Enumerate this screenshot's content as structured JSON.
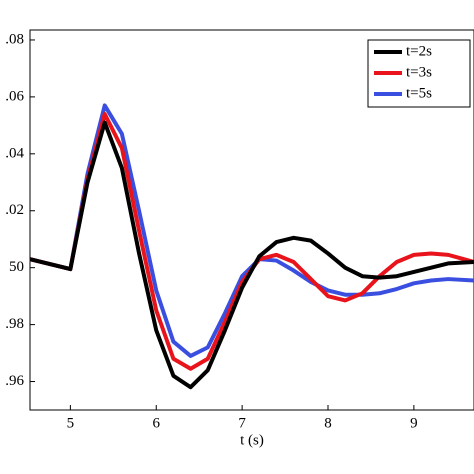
{
  "chart_data": {
    "type": "line",
    "x_label": "t (s)",
    "x": [
      4.53,
      5.0,
      5.2,
      5.4,
      5.6,
      5.8,
      6.0,
      6.2,
      6.4,
      6.6,
      6.8,
      7.0,
      7.2,
      7.4,
      7.6,
      7.8,
      8.0,
      8.2,
      8.4,
      8.6,
      8.8,
      9.0,
      9.2,
      9.4,
      9.7
    ],
    "series": [
      {
        "name": "t=2s",
        "color": "#000000",
        "values": [
          50.003,
          49.9995,
          50.03,
          50.051,
          50.035,
          50.005,
          49.978,
          49.962,
          49.958,
          49.964,
          49.978,
          49.993,
          50.004,
          50.009,
          50.0105,
          50.0095,
          50.005,
          50.0,
          49.997,
          49.9965,
          49.997,
          49.9985,
          50.0,
          50.0015,
          50.002
        ]
      },
      {
        "name": "t=3s",
        "color": "#e8131b",
        "values": [
          50.003,
          49.9995,
          50.031,
          50.054,
          50.042,
          50.013,
          49.985,
          49.968,
          49.9645,
          49.968,
          49.981,
          49.995,
          50.003,
          50.0045,
          50.002,
          49.996,
          49.99,
          49.9885,
          49.991,
          49.997,
          50.002,
          50.0045,
          50.005,
          50.0045,
          50.002
        ]
      },
      {
        "name": "t=5s",
        "color": "#3a4fe0",
        "values": [
          50.003,
          49.9995,
          50.033,
          50.057,
          50.047,
          50.02,
          49.992,
          49.974,
          49.969,
          49.972,
          49.984,
          49.997,
          50.003,
          50.0025,
          49.999,
          49.995,
          49.992,
          49.9905,
          49.9905,
          49.991,
          49.9925,
          49.9945,
          49.9955,
          49.996,
          49.9955
        ]
      }
    ],
    "xlim": [
      4.53,
      9.7
    ],
    "xticks": [
      5,
      6,
      7,
      8,
      9
    ],
    "ylim": [
      49.95,
      50.0835
    ],
    "yticks": [
      {
        "value": 49.96,
        "label": ".96"
      },
      {
        "value": 49.98,
        "label": ".98"
      },
      50,
      {
        "value": 50.02,
        "label": ".02"
      },
      {
        "value": 50.04,
        "label": ".04"
      },
      {
        "value": 50.06,
        "label": ".06"
      },
      {
        "value": 50.08,
        "label": ".08"
      }
    ],
    "legend": "upper-right"
  }
}
